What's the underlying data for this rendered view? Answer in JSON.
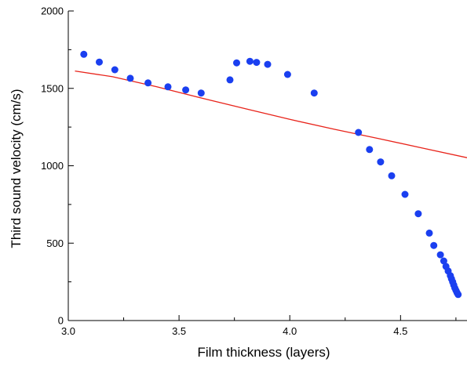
{
  "chart_data": {
    "type": "scatter",
    "title": "",
    "xlabel": "Film thickness  (layers)",
    "ylabel": "Third sound velocity  (cm/s)",
    "xlim": [
      3.0,
      4.8
    ],
    "ylim": [
      0,
      2000
    ],
    "x_ticks": [
      3.0,
      3.5,
      4.0,
      4.5
    ],
    "x_tick_labels": [
      "3.0",
      "3.5",
      "4.0",
      "4.5"
    ],
    "y_ticks": [
      0,
      500,
      1000,
      1500,
      2000
    ],
    "y_tick_labels": [
      "0",
      "500",
      "1000",
      "1500",
      "2000"
    ],
    "grid": false,
    "legend": "none",
    "series": [
      {
        "type": "scatter",
        "color": "#1a3ff0",
        "points": [
          [
            3.07,
            1720
          ],
          [
            3.14,
            1670
          ],
          [
            3.21,
            1620
          ],
          [
            3.28,
            1565
          ],
          [
            3.36,
            1535
          ],
          [
            3.45,
            1510
          ],
          [
            3.53,
            1490
          ],
          [
            3.6,
            1470
          ],
          [
            3.73,
            1555
          ],
          [
            3.76,
            1665
          ],
          [
            3.82,
            1675
          ],
          [
            3.85,
            1668
          ],
          [
            3.9,
            1655
          ],
          [
            3.99,
            1590
          ],
          [
            4.11,
            1470
          ],
          [
            4.31,
            1215
          ],
          [
            4.36,
            1105
          ],
          [
            4.41,
            1025
          ],
          [
            4.46,
            935
          ],
          [
            4.52,
            815
          ],
          [
            4.58,
            690
          ],
          [
            4.63,
            565
          ],
          [
            4.65,
            485
          ],
          [
            4.68,
            425
          ],
          [
            4.695,
            385
          ],
          [
            4.705,
            350
          ],
          [
            4.715,
            320
          ],
          [
            4.725,
            290
          ],
          [
            4.73,
            270
          ],
          [
            4.735,
            250
          ],
          [
            4.74,
            230
          ],
          [
            4.745,
            210
          ],
          [
            4.75,
            195
          ],
          [
            4.755,
            180
          ],
          [
            4.76,
            168
          ]
        ]
      },
      {
        "type": "line",
        "color": "#e8231a",
        "points": [
          [
            3.03,
            1612
          ],
          [
            3.2,
            1575
          ],
          [
            3.4,
            1510
          ],
          [
            3.6,
            1438
          ],
          [
            3.8,
            1368
          ],
          [
            4.0,
            1300
          ],
          [
            4.2,
            1236
          ],
          [
            4.4,
            1176
          ],
          [
            4.6,
            1114
          ],
          [
            4.8,
            1052
          ]
        ]
      }
    ]
  }
}
